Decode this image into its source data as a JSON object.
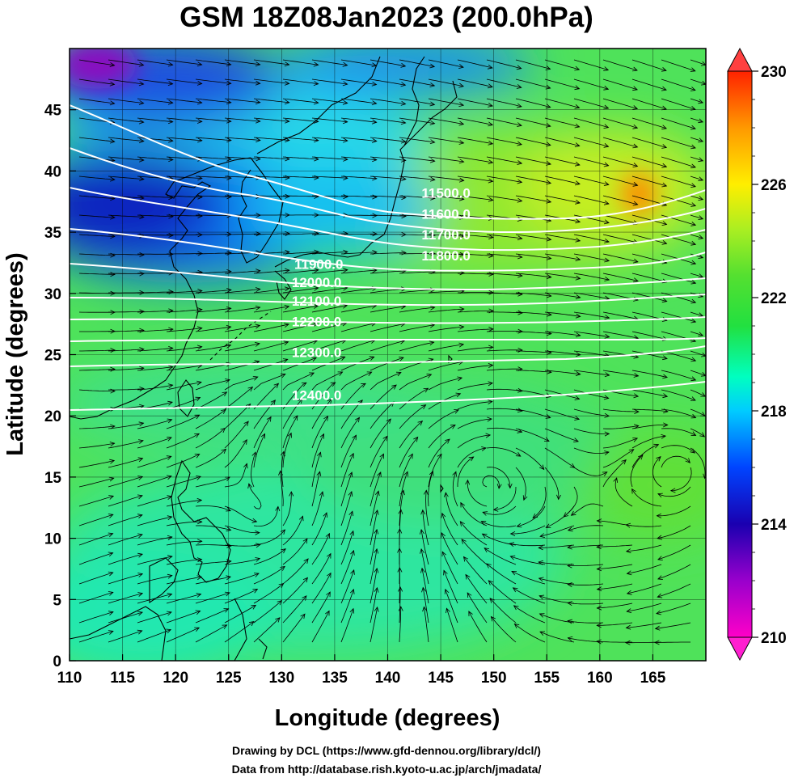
{
  "title": "GSM 18Z08Jan2023 (200.0hPa)",
  "x_axis": {
    "label": "Longitude (degrees)",
    "range": [
      110,
      170
    ],
    "ticks": [
      110,
      115,
      120,
      125,
      130,
      135,
      140,
      145,
      150,
      155,
      160,
      165
    ]
  },
  "y_axis": {
    "label": "Latitude  (degrees)",
    "range": [
      0,
      50
    ],
    "ticks": [
      0,
      5,
      10,
      15,
      20,
      25,
      30,
      35,
      40,
      45
    ]
  },
  "colorbar": {
    "range": [
      210,
      230
    ],
    "labels": [
      "230",
      "226",
      "222",
      "218",
      "214",
      "210"
    ],
    "values": [
      230,
      226,
      222,
      218,
      214,
      210
    ],
    "colors": [
      "#ff00c8",
      "#9900cc",
      "#1a00b0",
      "#0044ff",
      "#00ccff",
      "#00ffc0",
      "#22e040",
      "#55e030",
      "#aaee22",
      "#ffee00",
      "#ff9900",
      "#ff2200"
    ]
  },
  "contours": [
    {
      "label": "11500.0",
      "lon": 145.5,
      "lat": 37.8
    },
    {
      "label": "11600.0",
      "lon": 145.5,
      "lat": 36.1
    },
    {
      "label": "11700.0",
      "lon": 145.5,
      "lat": 34.4
    },
    {
      "label": "11800.0",
      "lon": 145.5,
      "lat": 32.7
    },
    {
      "label": "11900.0",
      "lon": 133.5,
      "lat": 32.0
    },
    {
      "label": "12000.0",
      "lon": 133.3,
      "lat": 30.5
    },
    {
      "label": "12100.0",
      "lon": 133.3,
      "lat": 29.0
    },
    {
      "label": "12200.0",
      "lon": 133.3,
      "lat": 27.3
    },
    {
      "label": "12300.0",
      "lon": 133.3,
      "lat": 24.8
    },
    {
      "label": "12400.0",
      "lon": 133.3,
      "lat": 21.3
    }
  ],
  "credits": {
    "line1": "Drawing by DCL (https://www.gfd-dennou.org/library/dcl/)",
    "line2": "Data from http://database.rish.kyoto-u.ac.jp/arch/jmadata/"
  }
}
